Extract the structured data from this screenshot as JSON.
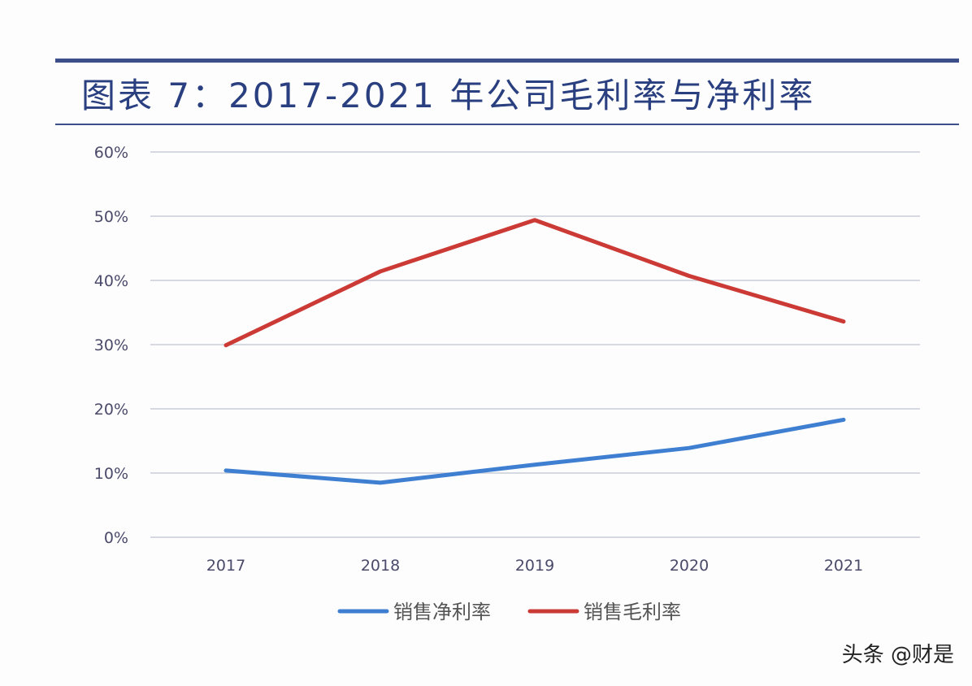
{
  "header": {
    "title": "图表 7：2017-2021 年公司毛利率与净利率"
  },
  "watermark": "头条 @财是",
  "colors": {
    "title": "#2a3f7f",
    "rule": "#3d4f8a",
    "grid": "#c9cdd8",
    "tick_text": "#4a4a6a",
    "net_margin": "#3f7fd1",
    "gross_margin": "#cc3a36"
  },
  "chart_data": {
    "type": "line",
    "title": "",
    "xlabel": "",
    "ylabel": "",
    "categories": [
      "2017",
      "2018",
      "2019",
      "2020",
      "2021"
    ],
    "ylim": [
      0,
      60
    ],
    "yticks": [
      0,
      10,
      20,
      30,
      40,
      50,
      60
    ],
    "ytick_labels": [
      "0%",
      "10%",
      "20%",
      "30%",
      "40%",
      "50%",
      "60%"
    ],
    "grid": true,
    "legend": "bottom",
    "series": [
      {
        "name": "销售净利率",
        "color": "#3f7fd1",
        "values": [
          10.4,
          8.5,
          11.3,
          13.9,
          18.3
        ]
      },
      {
        "name": "销售毛利率",
        "color": "#cc3a36",
        "values": [
          29.9,
          41.4,
          49.4,
          40.7,
          33.6
        ]
      }
    ]
  }
}
